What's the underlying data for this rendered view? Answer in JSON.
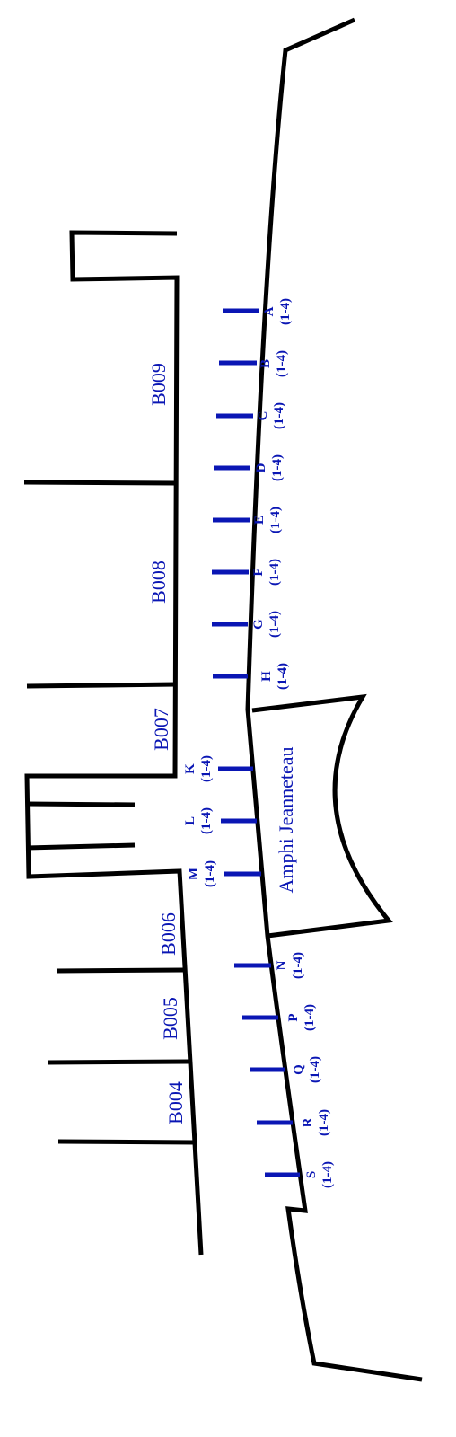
{
  "colors": {
    "wall": "#000000",
    "accent": "#0a16b4",
    "background": "#ffffff"
  },
  "rooms": [
    "B009",
    "B008",
    "B007",
    "B006",
    "B005",
    "B004"
  ],
  "amphi": {
    "label": "Amphi Jeanneteau"
  },
  "rows": [
    {
      "letter": "A",
      "range": "(1-4)"
    },
    {
      "letter": "B",
      "range": "(1-4)"
    },
    {
      "letter": "C",
      "range": "(1-4)"
    },
    {
      "letter": "D",
      "range": "(1-4)"
    },
    {
      "letter": "E",
      "range": "(1-4)"
    },
    {
      "letter": "F",
      "range": "(1-4)"
    },
    {
      "letter": "G",
      "range": "(1-4)"
    },
    {
      "letter": "H",
      "range": "(1-4)"
    },
    {
      "letter": "K",
      "range": "(1-4)"
    },
    {
      "letter": "L",
      "range": "(1-4)"
    },
    {
      "letter": "M",
      "range": "(1-4)"
    },
    {
      "letter": "N",
      "range": "(1-4)"
    },
    {
      "letter": "P",
      "range": "(1-4)"
    },
    {
      "letter": "Q",
      "range": "(1-4)"
    },
    {
      "letter": "R",
      "range": "(1-4)"
    },
    {
      "letter": "S",
      "range": "(1-4)"
    }
  ]
}
